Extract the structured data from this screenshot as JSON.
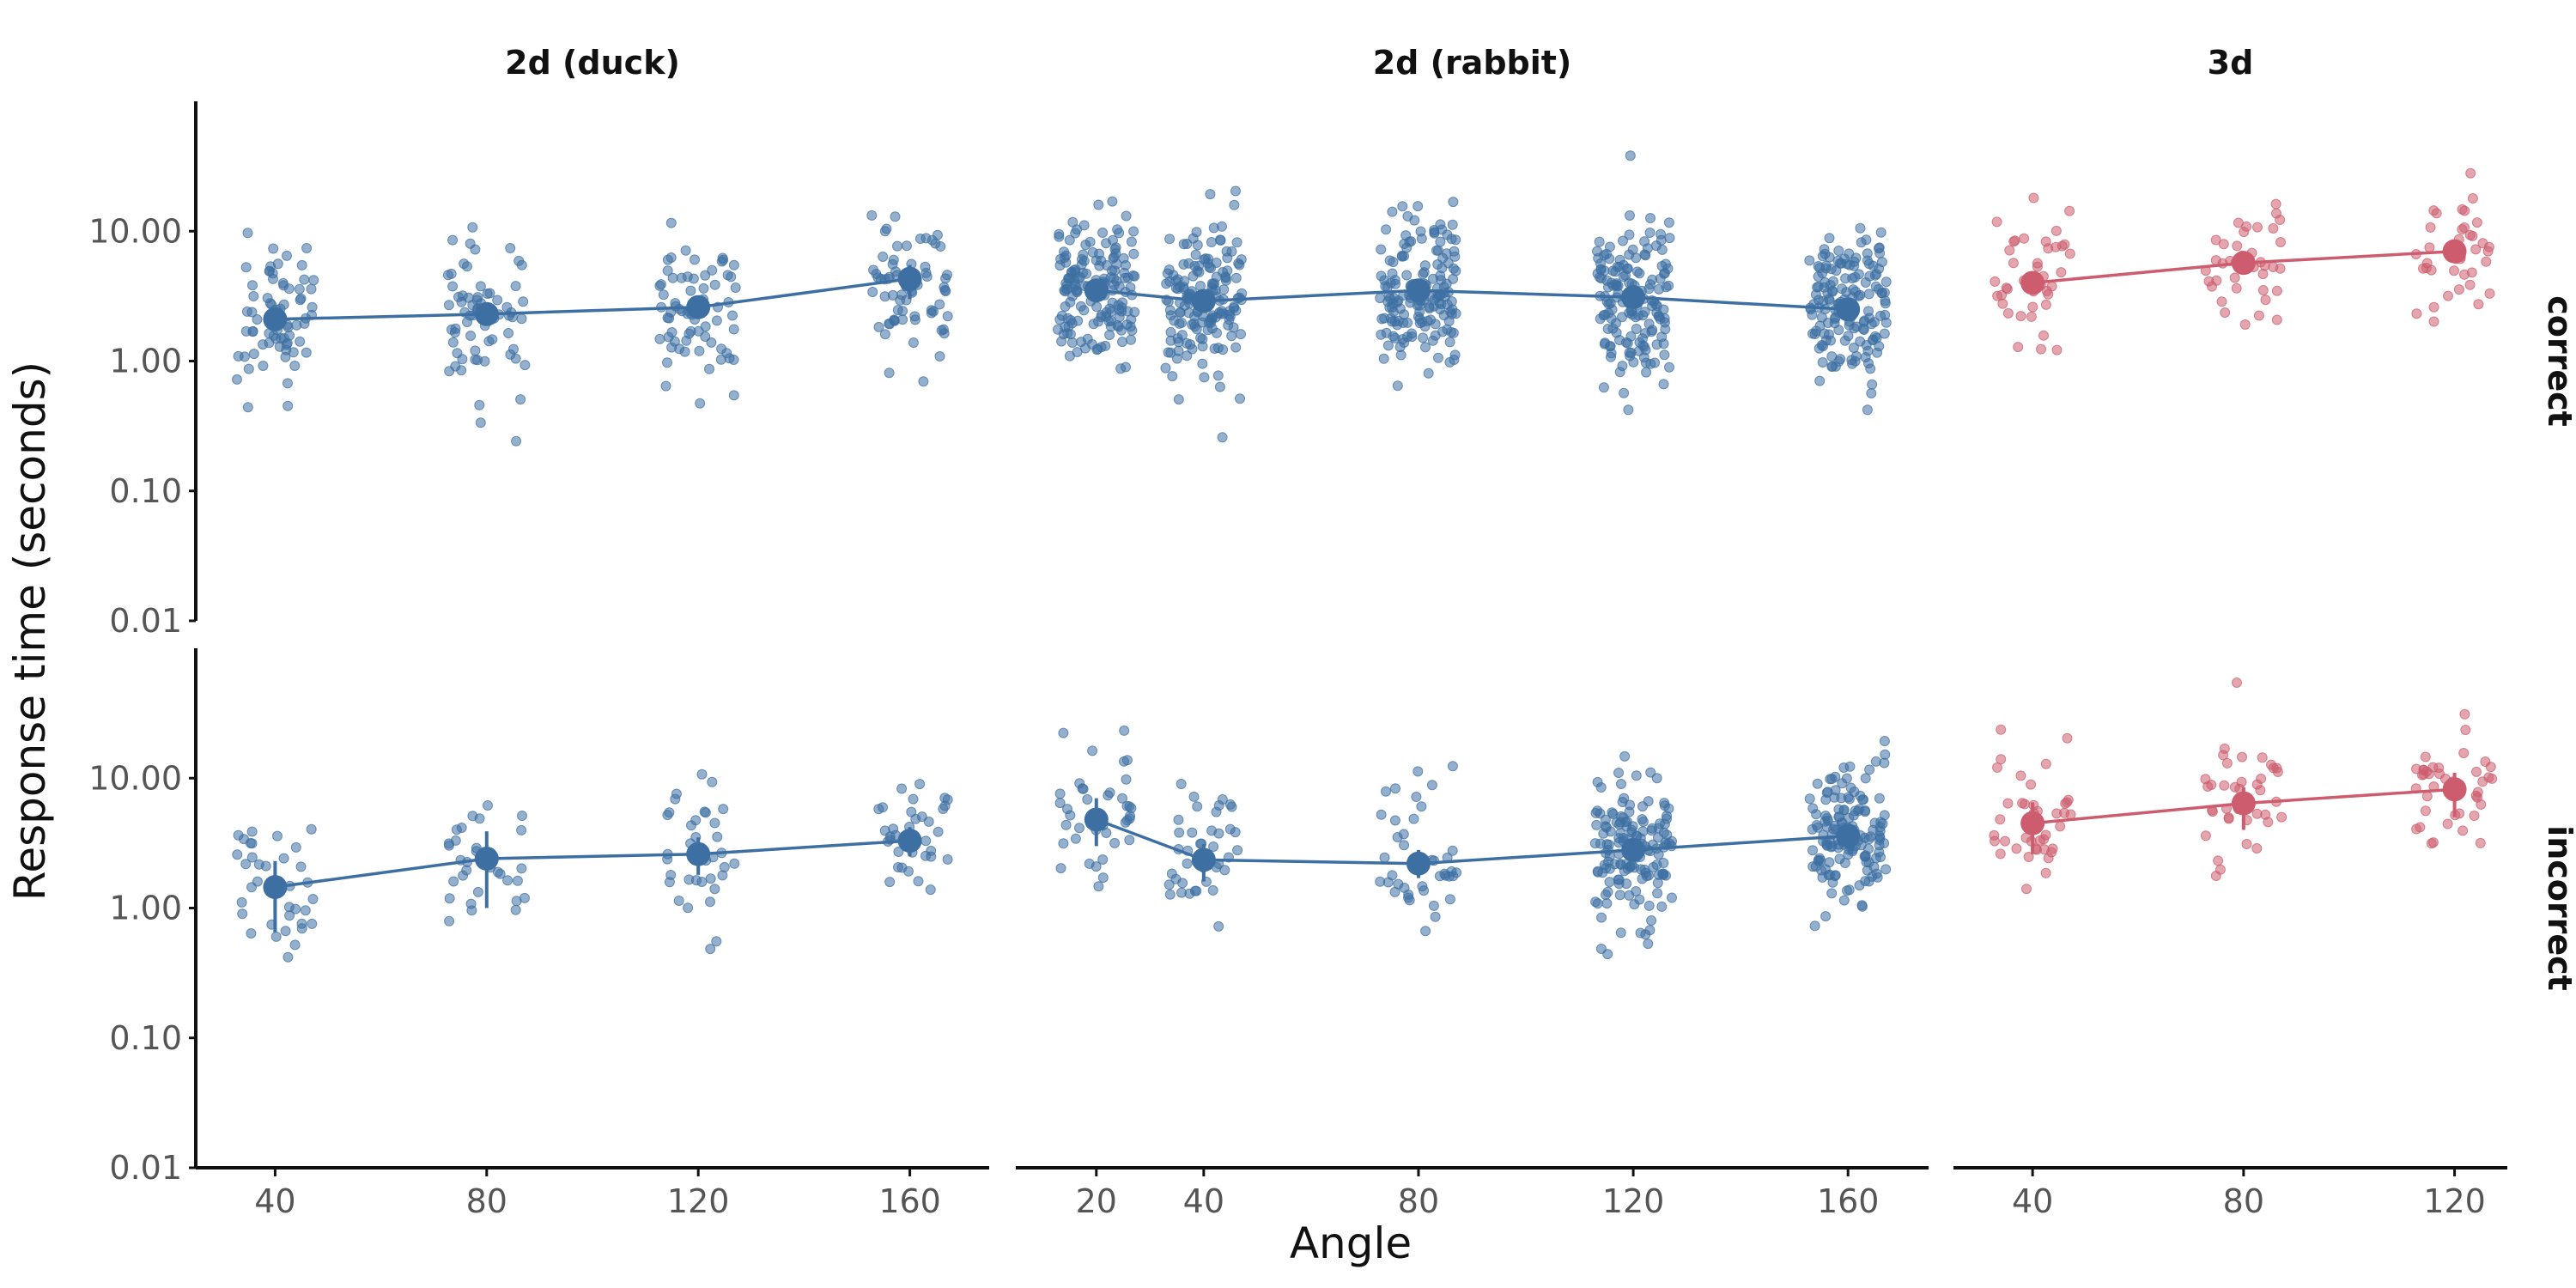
{
  "chart_data": {
    "type": "scatter",
    "ylabel": "Response time (seconds)",
    "xlabel": "Angle",
    "y_scale": "log10",
    "ylim": [
      0.01,
      100
    ],
    "y_ticks": [
      "10.00",
      "1.00",
      "0.10",
      "0.01"
    ],
    "grid": false,
    "colors": {
      "2d": "#3d6fa3",
      "3d": "#cc5c6e"
    },
    "columns": [
      {
        "title": "2d (duck)",
        "x_ticks": [
          40,
          80,
          120,
          160
        ],
        "xlim": [
          25,
          175
        ],
        "color_key": "2d"
      },
      {
        "title": "2d (rabbit)",
        "x_ticks": [
          20,
          40,
          80,
          120,
          160
        ],
        "xlim": [
          5,
          175
        ],
        "color_key": "2d"
      },
      {
        "title": "3d",
        "x_ticks": [
          40,
          80,
          120
        ],
        "xlim": [
          25,
          130
        ],
        "color_key": "3d"
      }
    ],
    "rows": [
      "correct",
      "incorrect"
    ],
    "panels": [
      {
        "column": "2d (duck)",
        "row": "correct",
        "means": [
          {
            "x": 40,
            "y": 2.1,
            "lo": 1.8,
            "hi": 2.4
          },
          {
            "x": 80,
            "y": 2.3,
            "lo": 2.0,
            "hi": 2.7
          },
          {
            "x": 120,
            "y": 2.6,
            "lo": 2.2,
            "hi": 3.0
          },
          {
            "x": 160,
            "y": 4.3,
            "lo": 3.0,
            "hi": 5.5
          }
        ]
      },
      {
        "column": "2d (duck)",
        "row": "incorrect",
        "means": [
          {
            "x": 40,
            "y": 1.45,
            "lo": 0.65,
            "hi": 2.3
          },
          {
            "x": 80,
            "y": 2.4,
            "lo": 1.0,
            "hi": 3.9
          },
          {
            "x": 120,
            "y": 2.6,
            "lo": 1.8,
            "hi": 3.5
          },
          {
            "x": 160,
            "y": 3.3,
            "lo": 2.5,
            "hi": 4.2
          }
        ]
      },
      {
        "column": "2d (rabbit)",
        "row": "correct",
        "means": [
          {
            "x": 20,
            "y": 3.5,
            "lo": 3.0,
            "hi": 4.0
          },
          {
            "x": 40,
            "y": 2.9,
            "lo": 2.5,
            "hi": 3.3
          },
          {
            "x": 80,
            "y": 3.5,
            "lo": 3.0,
            "hi": 4.0
          },
          {
            "x": 120,
            "y": 3.1,
            "lo": 2.7,
            "hi": 3.5
          },
          {
            "x": 160,
            "y": 2.5,
            "lo": 2.2,
            "hi": 2.9
          }
        ]
      },
      {
        "column": "2d (rabbit)",
        "row": "incorrect",
        "means": [
          {
            "x": 20,
            "y": 4.8,
            "lo": 3.0,
            "hi": 7.0
          },
          {
            "x": 40,
            "y": 2.35,
            "lo": 1.6,
            "hi": 3.1
          },
          {
            "x": 80,
            "y": 2.2,
            "lo": 1.7,
            "hi": 2.8
          },
          {
            "x": 120,
            "y": 2.8,
            "lo": 2.3,
            "hi": 3.4
          },
          {
            "x": 160,
            "y": 3.6,
            "lo": 2.9,
            "hi": 4.4
          }
        ]
      },
      {
        "column": "3d",
        "row": "correct",
        "means": [
          {
            "x": 40,
            "y": 4.0,
            "lo": 3.3,
            "hi": 4.8
          },
          {
            "x": 80,
            "y": 5.7,
            "lo": 4.8,
            "hi": 6.6
          },
          {
            "x": 120,
            "y": 7.0,
            "lo": 5.8,
            "hi": 8.3
          }
        ]
      },
      {
        "column": "3d",
        "row": "incorrect",
        "means": [
          {
            "x": 40,
            "y": 4.5,
            "lo": 2.6,
            "hi": 6.5
          },
          {
            "x": 80,
            "y": 6.4,
            "lo": 4.0,
            "hi": 8.5
          },
          {
            "x": 120,
            "y": 8.2,
            "lo": 5.0,
            "hi": 11.0
          }
        ]
      }
    ],
    "raw_points_note_values": []
  }
}
